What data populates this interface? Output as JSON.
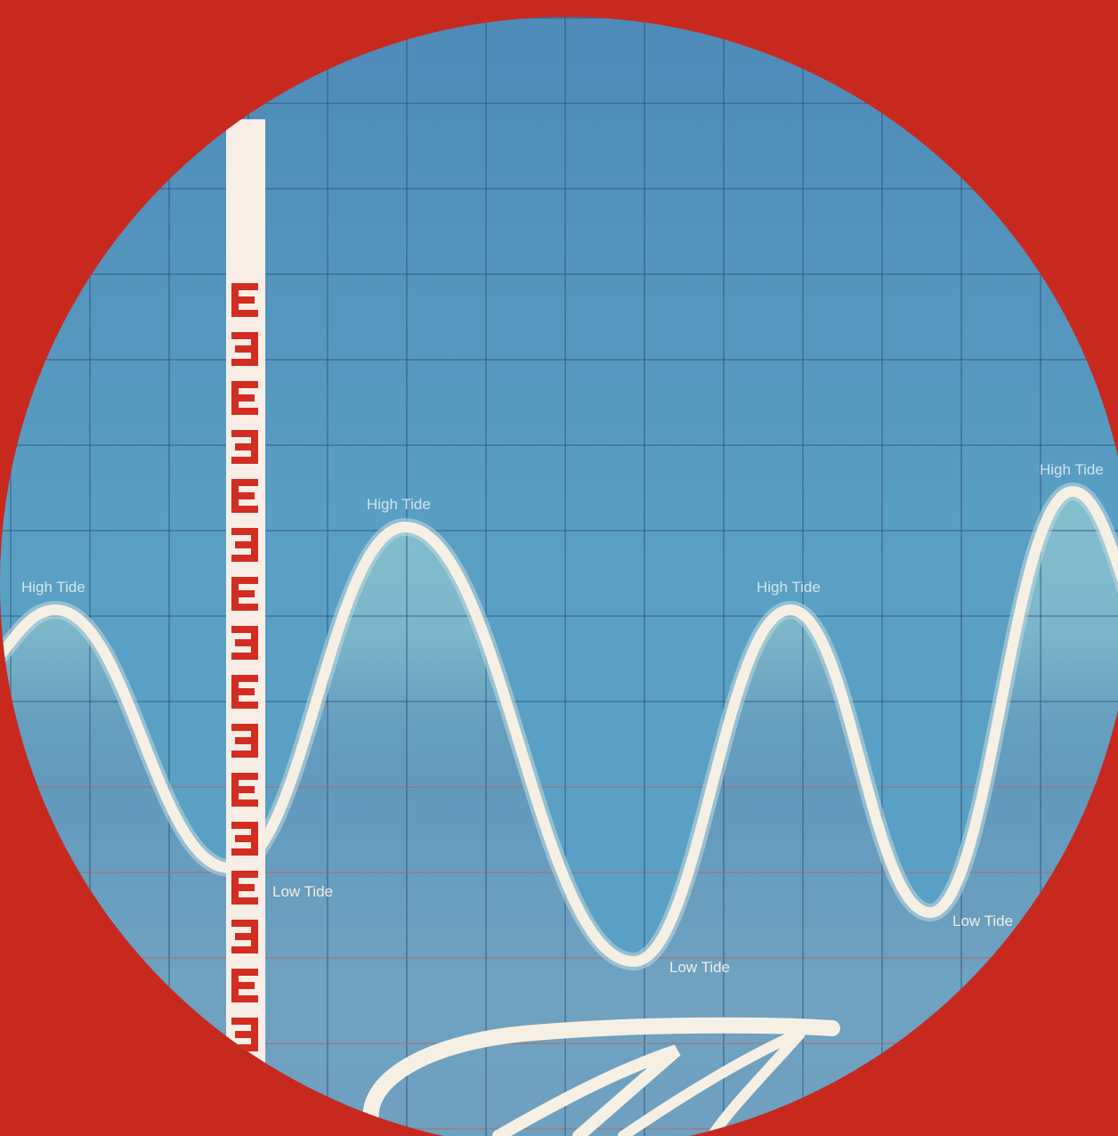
{
  "colors": {
    "background": "#c8291f",
    "water_deep": "#2a61a2",
    "water_light": "#a6d3d8",
    "sky_top": "#4f8cb8",
    "curve": "#f6efe3",
    "ruler_face": "#f8eee6",
    "ruler_marks": "#d32d22",
    "grid_line": "#2b4e78",
    "grid_line_lower": "#b8615a"
  },
  "tides": [
    {
      "kind": "high",
      "label": "High Tide"
    },
    {
      "kind": "low",
      "label": "Low Tide"
    },
    {
      "kind": "high",
      "label": "High Tide"
    },
    {
      "kind": "low",
      "label": "Low Tide"
    },
    {
      "kind": "high",
      "label": "High Tide"
    },
    {
      "kind": "low",
      "label": "Low Tide"
    },
    {
      "kind": "high",
      "label": "High Tide"
    }
  ],
  "ruler": {
    "mark_glyph": "E",
    "mark_count": 17
  },
  "decor": {
    "script_lettering": "script-lettering-partial",
    "icon": "tide-gauge-ruler-icon"
  }
}
